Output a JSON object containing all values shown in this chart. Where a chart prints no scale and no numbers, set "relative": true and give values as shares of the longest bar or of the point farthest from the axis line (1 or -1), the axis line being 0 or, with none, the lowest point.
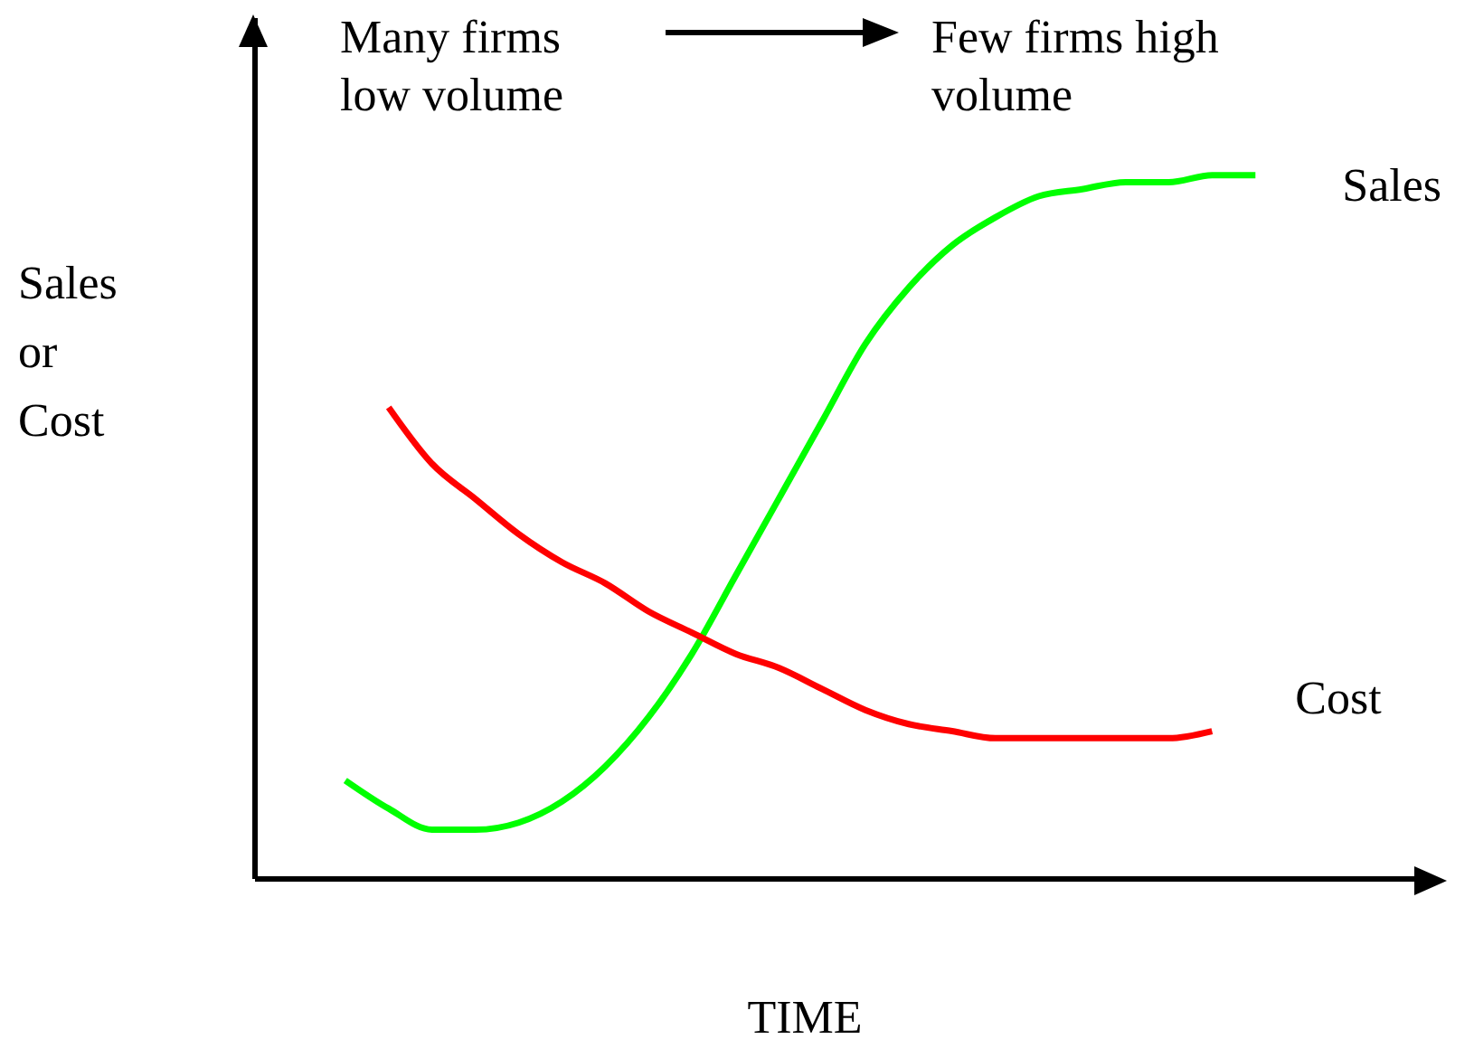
{
  "chart_data": {
    "type": "line",
    "relative": true,
    "xlabel": "TIME",
    "ylabel": "Sales or Cost",
    "annotations": [
      "Many firms low volume",
      "Few firms high volume"
    ],
    "categories": [
      null,
      null,
      null,
      null,
      null,
      null,
      null,
      null,
      null,
      null,
      null,
      null,
      null,
      null,
      null,
      null,
      null,
      null,
      null,
      null,
      null,
      null
    ],
    "series": [
      {
        "name": "Sales",
        "color": "#00ff00",
        "values": [
          0.14,
          0.1,
          0.07,
          0.07,
          0.08,
          0.11,
          0.16,
          0.23,
          0.32,
          0.43,
          0.54,
          0.65,
          0.76,
          0.84,
          0.9,
          0.94,
          0.97,
          0.98,
          0.99,
          0.99,
          1,
          1
        ]
      },
      {
        "name": "Cost",
        "color": "#ff0000",
        "values": [
          null,
          0.67,
          0.59,
          0.54,
          0.49,
          0.45,
          0.42,
          0.38,
          0.35,
          0.32,
          0.3,
          0.27,
          0.24,
          0.22,
          0.21,
          0.2,
          0.2,
          0.2,
          0.2,
          0.2,
          0.21,
          null
        ]
      }
    ]
  }
}
